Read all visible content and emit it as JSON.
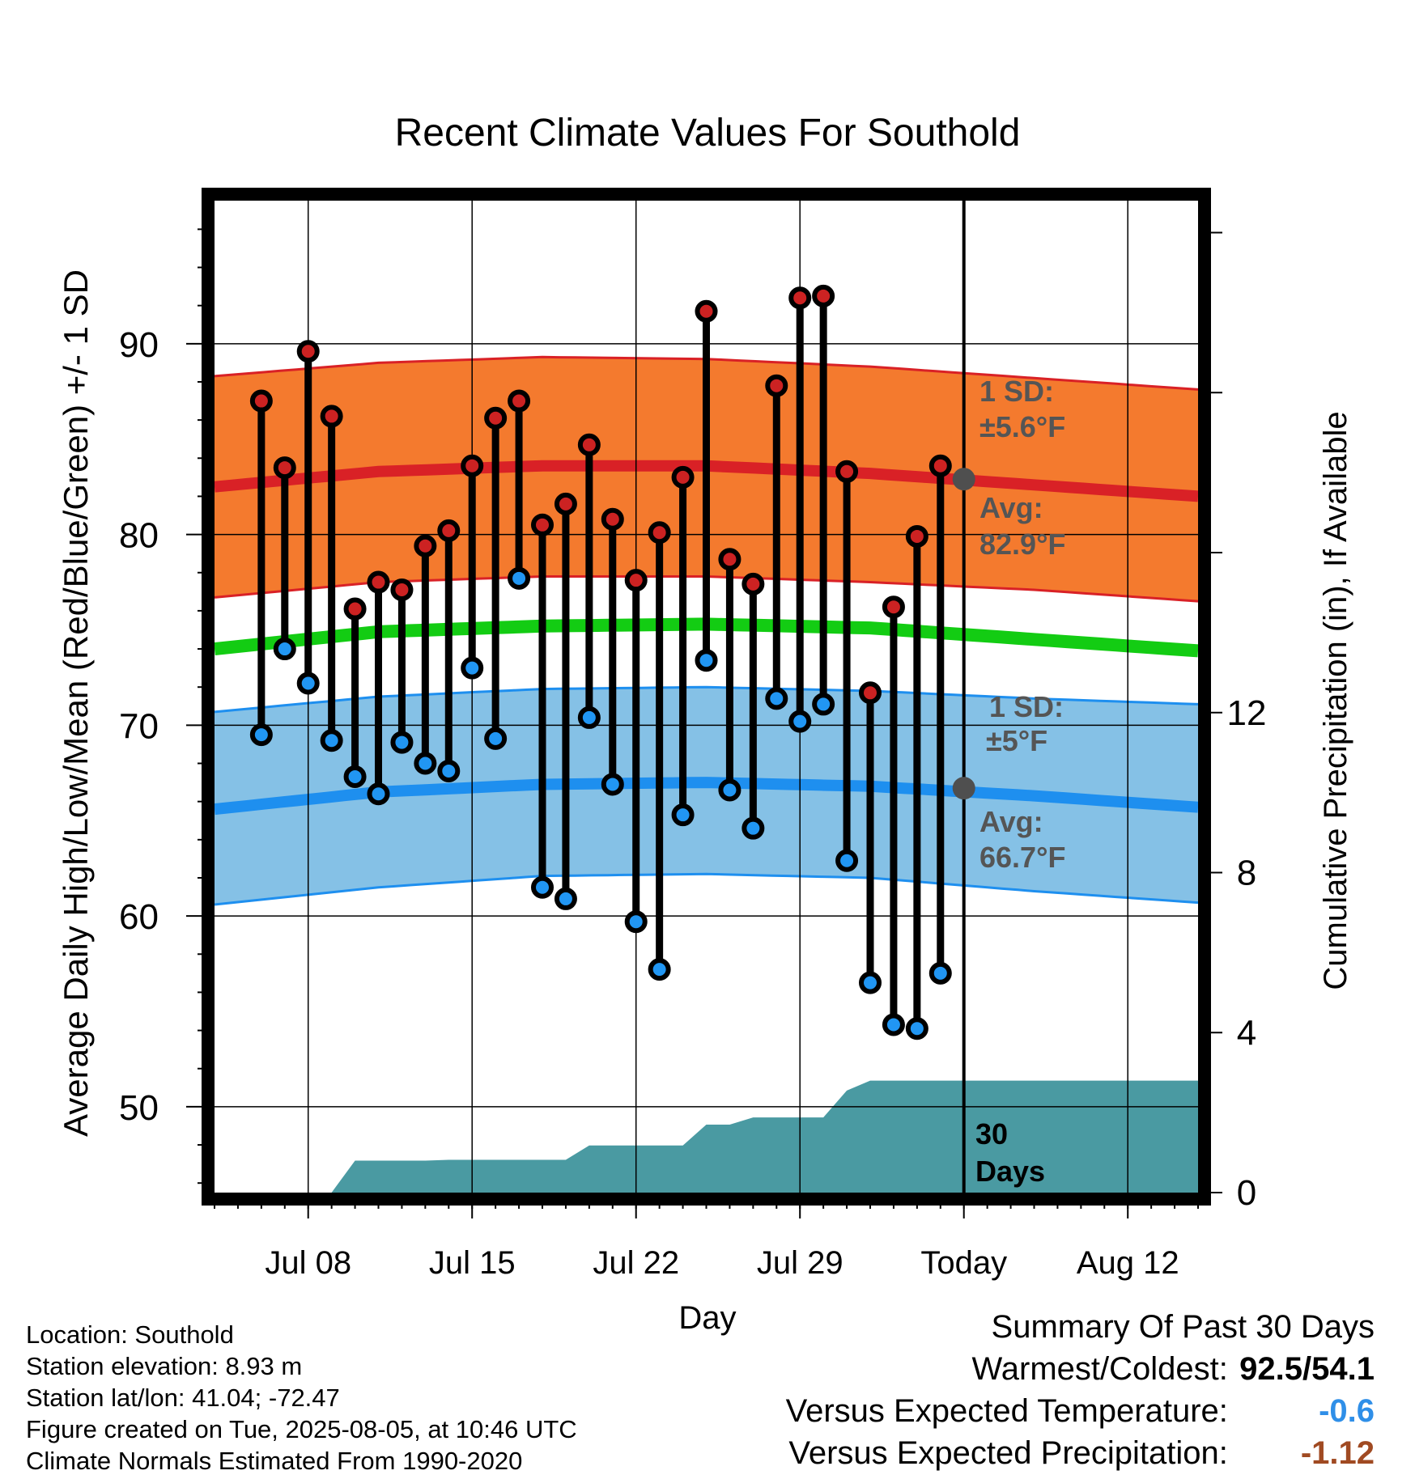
{
  "title": "Recent Climate Values For Southold",
  "x_axis_label": "Day",
  "y_axis_label": "Average Daily High/Low/Mean (Red/Blue/Green) +/- 1 SD",
  "y2_axis_label": "Cumulative Precipitation (in), If Available",
  "annotations": {
    "high_sd_line1": "1 SD:",
    "high_sd_line2": "±5.6°F",
    "high_avg_line1": "Avg:",
    "high_avg_line2": "82.9°F",
    "low_sd_line1": "1 SD:",
    "low_sd_line2": "±5°F",
    "low_avg_line1": "Avg:",
    "low_avg_line2": "66.7°F",
    "precip_days_line1": "30",
    "precip_days_line2": "Days"
  },
  "info": {
    "location": "Location: Southold",
    "elevation": "Station elevation: 8.93 m",
    "latlon": "Station lat/lon: 41.04; -72.47",
    "created": "Figure created on Tue, 2025-08-05, at 10:46 UTC",
    "normals": "Climate Normals Estimated From 1990-2020"
  },
  "summary": {
    "heading": "Summary Of Past 30 Days",
    "warm_cold_label": "Warmest/Coldest:",
    "warm_cold_value": "92.5/54.1",
    "temp_label": "Versus Expected Temperature:",
    "temp_value": "-0.6",
    "precip_label": "Versus Expected Precipitation:",
    "precip_value": "-1.12"
  },
  "colors": {
    "high_band": "#f47a2e",
    "high_avg": "#d92126",
    "high_dot": "#cc2222",
    "low_band": "#85c1e6",
    "low_avg": "#1e8fef",
    "low_dot": "#2196f3",
    "mean": "#13cc13",
    "precip": "#4a9aa2",
    "temp_value": "#2f8fe8",
    "precip_value": "#a04a22",
    "avg_marker": "#4f4f4f"
  },
  "chart_data": {
    "type": "line",
    "title": "Recent Climate Values For Southold",
    "xlabel": "Day",
    "ylabel": "Average Daily High/Low/Mean (Red/Blue/Green) +/- 1 SD",
    "y2label": "Cumulative Precipitation (in), If Available",
    "ylim": [
      45.5,
      97.5
    ],
    "y2lim": [
      0,
      24.8
    ],
    "yticks": [
      50,
      60,
      70,
      80,
      90
    ],
    "y2ticks": [
      0,
      4,
      8,
      12
    ],
    "xlim": [
      "2025-07-04",
      "2025-08-15"
    ],
    "xtick_dates": [
      "2025-07-08",
      "2025-07-15",
      "2025-07-22",
      "2025-07-29",
      "2025-08-05",
      "2025-08-12"
    ],
    "xtick_labels": [
      "Jul 08",
      "Jul 15",
      "Jul 22",
      "Jul 29",
      "Today",
      "Aug 12"
    ],
    "today": "2025-08-05",
    "grid": true,
    "observations": {
      "dates": [
        "2025-07-06",
        "2025-07-07",
        "2025-07-08",
        "2025-07-09",
        "2025-07-10",
        "2025-07-11",
        "2025-07-12",
        "2025-07-13",
        "2025-07-14",
        "2025-07-15",
        "2025-07-16",
        "2025-07-17",
        "2025-07-18",
        "2025-07-19",
        "2025-07-20",
        "2025-07-21",
        "2025-07-22",
        "2025-07-23",
        "2025-07-24",
        "2025-07-25",
        "2025-07-26",
        "2025-07-27",
        "2025-07-28",
        "2025-07-29",
        "2025-07-30",
        "2025-07-31",
        "2025-08-01",
        "2025-08-02",
        "2025-08-03",
        "2025-08-04"
      ],
      "high": [
        87.0,
        83.5,
        89.6,
        86.2,
        76.1,
        77.5,
        77.1,
        79.4,
        80.2,
        83.6,
        86.1,
        87.0,
        80.5,
        81.6,
        84.7,
        80.8,
        77.6,
        80.1,
        83.0,
        91.7,
        78.7,
        77.4,
        87.8,
        92.4,
        92.5,
        83.3,
        71.7,
        76.2,
        79.9,
        83.6
      ],
      "low": [
        69.5,
        74.0,
        72.2,
        69.2,
        67.3,
        66.4,
        69.1,
        68.0,
        67.6,
        73.0,
        69.3,
        77.7,
        61.5,
        60.9,
        70.4,
        66.9,
        59.7,
        57.2,
        65.3,
        73.4,
        66.6,
        64.6,
        71.4,
        70.2,
        71.1,
        62.9,
        56.5,
        54.3,
        54.1,
        57.0
      ]
    },
    "normals": {
      "dates": [
        "2025-07-04",
        "2025-07-11",
        "2025-07-18",
        "2025-07-25",
        "2025-08-01",
        "2025-08-08",
        "2025-08-15"
      ],
      "high_avg": [
        82.5,
        83.3,
        83.6,
        83.6,
        83.2,
        82.6,
        82.0
      ],
      "high_plus_sd": [
        88.3,
        89.0,
        89.3,
        89.2,
        88.8,
        88.2,
        87.6
      ],
      "high_minus_sd": [
        76.7,
        77.5,
        77.8,
        77.8,
        77.5,
        77.1,
        76.5
      ],
      "mean": [
        74.0,
        74.9,
        75.2,
        75.3,
        75.1,
        74.5,
        73.9
      ],
      "low_avg": [
        65.6,
        66.5,
        66.9,
        67.0,
        66.8,
        66.3,
        65.7
      ],
      "low_plus_sd": [
        70.7,
        71.5,
        71.9,
        72.0,
        71.8,
        71.4,
        71.1
      ],
      "low_minus_sd": [
        60.6,
        61.5,
        62.1,
        62.2,
        62.0,
        61.3,
        60.7
      ]
    },
    "precipitation": {
      "dates": [
        "2025-07-06",
        "2025-07-07",
        "2025-07-08",
        "2025-07-09",
        "2025-07-10",
        "2025-07-11",
        "2025-07-12",
        "2025-07-13",
        "2025-07-14",
        "2025-07-15",
        "2025-07-16",
        "2025-07-17",
        "2025-07-18",
        "2025-07-19",
        "2025-07-20",
        "2025-07-21",
        "2025-07-22",
        "2025-07-23",
        "2025-07-24",
        "2025-07-25",
        "2025-07-26",
        "2025-07-27",
        "2025-07-28",
        "2025-07-29",
        "2025-07-30",
        "2025-07-31",
        "2025-08-01",
        "2025-08-02",
        "2025-08-03",
        "2025-08-04",
        "2025-08-05",
        "2025-08-15"
      ],
      "cumulative": [
        0,
        0,
        0,
        0,
        0.8,
        0.8,
        0.8,
        0.8,
        0.82,
        0.82,
        0.82,
        0.82,
        0.82,
        0.82,
        1.18,
        1.18,
        1.18,
        1.18,
        1.18,
        1.7,
        1.7,
        1.88,
        1.88,
        1.88,
        1.88,
        2.55,
        2.8,
        2.8,
        2.8,
        2.8,
        2.8,
        2.8
      ]
    },
    "today_markers": {
      "high_avg": 82.9,
      "low_avg": 66.7
    }
  }
}
